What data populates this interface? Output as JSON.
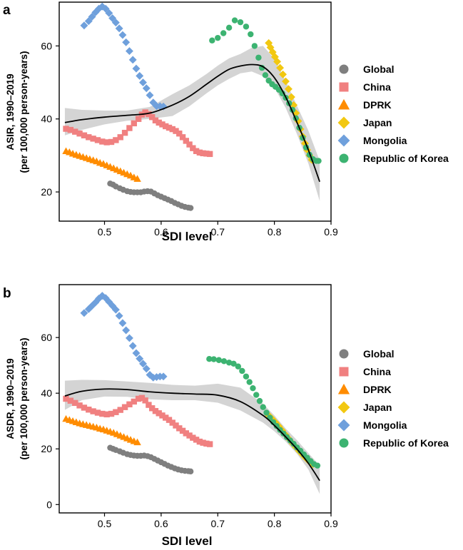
{
  "chart_data": [
    {
      "panel": "a",
      "type": "scatter",
      "xlabel": "SDI level",
      "ylabel_line1": "ASIR, 1990–2019",
      "ylabel_line2": "(per 100,000 person-years)",
      "xlim": [
        0.42,
        0.9
      ],
      "ylim": [
        12,
        72
      ],
      "xticks": [
        0.5,
        0.6,
        0.7,
        0.8,
        0.9
      ],
      "xtick_labels": [
        "0.5",
        "0.6",
        "0.7",
        "0.8",
        "0.9"
      ],
      "yticks": [
        20,
        40,
        60
      ],
      "ytick_labels": [
        "20",
        "40",
        "60"
      ],
      "series": [
        {
          "name": "Global",
          "color": "#7f7f7f",
          "marker": "circle",
          "x": [
            0.51,
            0.515,
            0.52,
            0.527,
            0.533,
            0.54,
            0.546,
            0.552,
            0.558,
            0.564,
            0.57,
            0.576,
            0.582,
            0.588,
            0.594,
            0.6,
            0.606,
            0.612,
            0.618,
            0.624,
            0.63,
            0.636,
            0.642,
            0.648,
            0.652
          ],
          "y": [
            22.3,
            22.0,
            21.5,
            21.0,
            20.6,
            20.2,
            20.0,
            19.9,
            19.9,
            19.9,
            20.1,
            20.2,
            20.1,
            19.6,
            19.1,
            18.7,
            18.3,
            17.9,
            17.5,
            17.0,
            16.6,
            16.2,
            15.9,
            15.7,
            15.6
          ]
        },
        {
          "name": "China",
          "color": "#f08080",
          "marker": "square",
          "x": [
            0.432,
            0.44,
            0.448,
            0.456,
            0.464,
            0.472,
            0.48,
            0.488,
            0.496,
            0.504,
            0.512,
            0.52,
            0.528,
            0.536,
            0.544,
            0.552,
            0.56,
            0.566,
            0.572,
            0.578,
            0.584,
            0.59,
            0.596,
            0.602,
            0.608,
            0.614,
            0.62,
            0.626,
            0.632,
            0.638,
            0.644,
            0.65,
            0.656,
            0.662,
            0.668,
            0.674,
            0.68,
            0.686
          ],
          "y": [
            37.3,
            37.0,
            36.5,
            36.0,
            35.5,
            35.0,
            34.6,
            34.2,
            33.8,
            33.6,
            33.7,
            34.2,
            35.0,
            36.2,
            37.5,
            38.8,
            40.0,
            41.2,
            41.8,
            41.3,
            40.5,
            39.6,
            39.0,
            38.5,
            38.0,
            37.6,
            37.2,
            36.7,
            36.0,
            35.0,
            34.0,
            33.0,
            32.0,
            31.2,
            30.8,
            30.6,
            30.5,
            30.4
          ]
        },
        {
          "name": "DPRK",
          "color": "#ff8c00",
          "marker": "triangle",
          "x": [
            0.432,
            0.438,
            0.444,
            0.45,
            0.456,
            0.462,
            0.468,
            0.474,
            0.48,
            0.486,
            0.492,
            0.498,
            0.504,
            0.51,
            0.516,
            0.522,
            0.528,
            0.534,
            0.54,
            0.546,
            0.552,
            0.558
          ],
          "y": [
            31.2,
            30.9,
            30.5,
            30.2,
            29.9,
            29.6,
            29.3,
            29.0,
            28.7,
            28.4,
            28.0,
            27.7,
            27.3,
            26.9,
            26.5,
            26.1,
            25.7,
            25.3,
            24.9,
            24.5,
            24.0,
            23.6
          ]
        },
        {
          "name": "Japan",
          "color": "#f2c811",
          "marker": "diamond",
          "x": [
            0.79,
            0.793,
            0.797,
            0.801,
            0.805,
            0.81,
            0.815,
            0.82,
            0.825,
            0.83,
            0.834,
            0.838,
            0.842,
            0.846,
            0.85,
            0.854,
            0.858,
            0.862,
            0.866
          ],
          "y": [
            60.8,
            59.6,
            58.3,
            57.0,
            55.7,
            54.0,
            52.2,
            50.3,
            48.2,
            46.0,
            43.8,
            41.6,
            39.4,
            37.2,
            35.2,
            33.3,
            31.5,
            30.0,
            28.8
          ]
        },
        {
          "name": "Mongolia",
          "color": "#6fa0dc",
          "marker": "diamond",
          "x": [
            0.464,
            0.472,
            0.478,
            0.484,
            0.49,
            0.496,
            0.502,
            0.508,
            0.514,
            0.52,
            0.526,
            0.532,
            0.538,
            0.544,
            0.55,
            0.556,
            0.562,
            0.568,
            0.574,
            0.58,
            0.586,
            0.592,
            0.598,
            0.604
          ],
          "y": [
            65.6,
            66.8,
            68.0,
            69.2,
            70.2,
            70.8,
            70.2,
            69.0,
            67.6,
            66.4,
            64.8,
            63.0,
            61.0,
            58.6,
            56.2,
            53.8,
            51.8,
            50.0,
            48.4,
            46.5,
            44.5,
            43.5,
            43.5,
            43.4
          ]
        },
        {
          "name": "Republic of Korea",
          "color": "#3cb371",
          "marker": "circle",
          "x": [
            0.69,
            0.7,
            0.71,
            0.72,
            0.73,
            0.74,
            0.75,
            0.758,
            0.765,
            0.772,
            0.778,
            0.784,
            0.79,
            0.796,
            0.802,
            0.808,
            0.814,
            0.82,
            0.826,
            0.832,
            0.838,
            0.844,
            0.85,
            0.856,
            0.862,
            0.868,
            0.874,
            0.878
          ],
          "y": [
            61.5,
            62.2,
            63.5,
            65.0,
            67.0,
            66.5,
            65.3,
            63.2,
            60.0,
            56.8,
            54.0,
            52.0,
            50.5,
            49.5,
            48.8,
            48.0,
            47.0,
            45.8,
            44.3,
            42.5,
            40.2,
            37.6,
            34.8,
            32.2,
            30.2,
            29.0,
            28.5,
            28.5
          ]
        }
      ],
      "trend": {
        "x": [
          0.43,
          0.46,
          0.5,
          0.54,
          0.58,
          0.62,
          0.65,
          0.68,
          0.7,
          0.72,
          0.74,
          0.76,
          0.78,
          0.8,
          0.82,
          0.84,
          0.86,
          0.88
        ],
        "y": [
          39.0,
          39.8,
          40.5,
          41.0,
          41.6,
          43.8,
          46.2,
          49.5,
          51.7,
          53.6,
          54.5,
          54.9,
          54.3,
          51.3,
          46.0,
          39.0,
          31.5,
          22.8
        ],
        "ci_lower": [
          35.5,
          37.0,
          38.5,
          39.5,
          40.0,
          40.8,
          43.5,
          47.0,
          49.2,
          51.0,
          52.5,
          53.0,
          51.7,
          48.6,
          43.0,
          35.8,
          27.8,
          17.5
        ],
        "ci_upper": [
          43.0,
          42.5,
          42.3,
          42.3,
          43.3,
          46.8,
          49.2,
          52.3,
          54.6,
          56.6,
          57.8,
          59.5,
          60.0,
          56.5,
          50.4,
          43.6,
          36.8,
          28.5
        ]
      }
    },
    {
      "panel": "b",
      "type": "scatter",
      "xlabel": "SDI level",
      "ylabel_line1": "ASDR, 1990–2019",
      "ylabel_line2": "(per 100,000 person-years)",
      "xlim": [
        0.42,
        0.9
      ],
      "ylim": [
        -3,
        79
      ],
      "xticks": [
        0.5,
        0.6,
        0.7,
        0.8,
        0.9
      ],
      "xtick_labels": [
        "0.5",
        "0.6",
        "0.7",
        "0.8",
        "0.9"
      ],
      "yticks": [
        0,
        20,
        40,
        60
      ],
      "ytick_labels": [
        "0",
        "20",
        "40",
        "60"
      ],
      "series": [
        {
          "name": "Global",
          "color": "#7f7f7f",
          "marker": "circle",
          "x": [
            0.51,
            0.515,
            0.52,
            0.527,
            0.533,
            0.54,
            0.546,
            0.552,
            0.558,
            0.564,
            0.57,
            0.576,
            0.582,
            0.588,
            0.594,
            0.6,
            0.606,
            0.612,
            0.618,
            0.624,
            0.63,
            0.636,
            0.642,
            0.648,
            0.652
          ],
          "y": [
            20.4,
            20.0,
            19.6,
            19.1,
            18.6,
            18.1,
            17.8,
            17.6,
            17.5,
            17.5,
            17.6,
            17.4,
            17.0,
            16.4,
            15.8,
            15.2,
            14.6,
            14.0,
            13.5,
            13.0,
            12.6,
            12.3,
            12.1,
            12.0,
            11.9
          ]
        },
        {
          "name": "China",
          "color": "#f08080",
          "marker": "square",
          "x": [
            0.432,
            0.44,
            0.448,
            0.456,
            0.464,
            0.472,
            0.48,
            0.488,
            0.496,
            0.504,
            0.512,
            0.52,
            0.528,
            0.536,
            0.544,
            0.552,
            0.56,
            0.566,
            0.572,
            0.578,
            0.584,
            0.59,
            0.596,
            0.602,
            0.608,
            0.614,
            0.62,
            0.626,
            0.632,
            0.638,
            0.644,
            0.65,
            0.656,
            0.662,
            0.668,
            0.674,
            0.68,
            0.686
          ],
          "y": [
            38.0,
            37.3,
            36.5,
            35.6,
            34.8,
            34.1,
            33.5,
            33.0,
            32.6,
            32.4,
            32.6,
            33.2,
            34.0,
            35.0,
            36.0,
            37.0,
            38.0,
            38.3,
            37.4,
            35.8,
            34.6,
            33.6,
            32.8,
            32.0,
            31.2,
            30.4,
            29.4,
            28.4,
            27.4,
            26.5,
            25.6,
            24.8,
            24.0,
            23.3,
            22.6,
            22.2,
            21.9,
            21.7
          ]
        },
        {
          "name": "DPRK",
          "color": "#ff8c00",
          "marker": "triangle",
          "x": [
            0.432,
            0.438,
            0.444,
            0.45,
            0.456,
            0.462,
            0.468,
            0.474,
            0.48,
            0.486,
            0.492,
            0.498,
            0.504,
            0.51,
            0.516,
            0.522,
            0.528,
            0.534,
            0.54,
            0.546,
            0.552,
            0.558
          ],
          "y": [
            30.8,
            30.4,
            30.0,
            29.6,
            29.2,
            28.9,
            28.6,
            28.3,
            28.0,
            27.7,
            27.3,
            27.0,
            26.6,
            26.2,
            25.8,
            25.3,
            24.8,
            24.3,
            23.8,
            23.3,
            22.8,
            22.4
          ]
        },
        {
          "name": "Japan",
          "color": "#f2c811",
          "marker": "diamond",
          "x": [
            0.79,
            0.796,
            0.802,
            0.808,
            0.814,
            0.82,
            0.826,
            0.832,
            0.838,
            0.844,
            0.85,
            0.856,
            0.862,
            0.868
          ],
          "y": [
            32.0,
            30.8,
            29.5,
            28.1,
            26.6,
            25.0,
            23.5,
            22.0,
            20.6,
            19.2,
            17.9,
            16.6,
            15.4,
            14.5
          ]
        },
        {
          "name": "Mongolia",
          "color": "#6fa0dc",
          "marker": "diamond",
          "x": [
            0.464,
            0.472,
            0.478,
            0.484,
            0.49,
            0.496,
            0.502,
            0.508,
            0.514,
            0.52,
            0.526,
            0.532,
            0.538,
            0.544,
            0.55,
            0.556,
            0.562,
            0.568,
            0.574,
            0.58,
            0.586,
            0.592,
            0.598,
            0.604
          ],
          "y": [
            68.8,
            70.2,
            71.4,
            72.6,
            74.0,
            75.0,
            74.2,
            72.8,
            71.4,
            70.0,
            67.8,
            65.2,
            62.6,
            59.8,
            57.0,
            54.4,
            52.4,
            50.6,
            48.8,
            46.6,
            45.6,
            45.8,
            46.0,
            46.0
          ]
        },
        {
          "name": "Republic of Korea",
          "color": "#3cb371",
          "marker": "circle",
          "x": [
            0.685,
            0.693,
            0.702,
            0.711,
            0.72,
            0.728,
            0.736,
            0.743,
            0.75,
            0.756,
            0.762,
            0.768,
            0.774,
            0.78,
            0.786,
            0.792,
            0.798,
            0.804,
            0.81,
            0.816,
            0.822,
            0.828,
            0.834,
            0.84,
            0.846,
            0.852,
            0.858,
            0.864,
            0.87,
            0.876
          ],
          "y": [
            52.3,
            52.2,
            51.9,
            51.5,
            51.0,
            50.6,
            49.6,
            48.0,
            46.0,
            44.0,
            41.8,
            39.4,
            37.2,
            35.0,
            33.0,
            31.2,
            29.6,
            28.2,
            26.8,
            25.5,
            24.2,
            23.0,
            21.8,
            20.5,
            19.3,
            18.0,
            16.8,
            15.6,
            14.5,
            14.0
          ]
        }
      ],
      "trend": {
        "x": [
          0.43,
          0.46,
          0.5,
          0.54,
          0.58,
          0.62,
          0.66,
          0.7,
          0.74,
          0.78,
          0.8,
          0.82,
          0.84,
          0.86,
          0.88
        ],
        "y": [
          39.0,
          40.7,
          41.5,
          41.3,
          40.5,
          40.0,
          39.7,
          39.3,
          37.0,
          32.0,
          28.4,
          24.3,
          19.9,
          14.8,
          8.6
        ],
        "ci_lower": [
          34.0,
          37.5,
          38.8,
          38.7,
          37.8,
          37.5,
          37.5,
          36.6,
          33.8,
          29.4,
          26.3,
          22.6,
          18.2,
          12.6,
          3.8
        ],
        "ci_upper": [
          44.5,
          44.8,
          44.7,
          44.2,
          43.7,
          43.0,
          42.7,
          43.4,
          42.0,
          36.2,
          32.0,
          27.3,
          23.1,
          18.5,
          14.0
        ]
      }
    }
  ]
}
